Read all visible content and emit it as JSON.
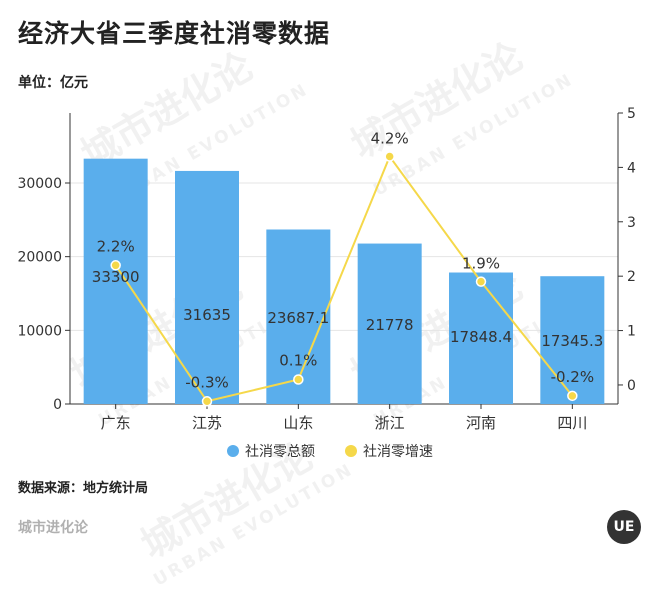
{
  "title": "经济大省三季度社消零数据",
  "unit": "单位：亿元",
  "source": "数据来源：地方统计局",
  "brand": "城市进化论",
  "logo_text": "UE",
  "watermark": {
    "cn": "城市进化论",
    "en": "URBAN EVOLUTION"
  },
  "colors": {
    "bar": "#5aaeec",
    "line": "#f5d84a",
    "axis": "#333333",
    "grid": "#e5e5e5"
  },
  "chart_data": {
    "type": "bar",
    "categories": [
      "广东",
      "江苏",
      "山东",
      "浙江",
      "河南",
      "四川"
    ],
    "series": [
      {
        "name": "社消零总额",
        "type": "bar",
        "axis": "left",
        "values": [
          33300,
          31635,
          23687.1,
          21778,
          17848.4,
          17345.3
        ],
        "labels": [
          "33300",
          "31635",
          "23687.1",
          "21778",
          "17848.4",
          "17345.3"
        ]
      },
      {
        "name": "社消零增速",
        "type": "line",
        "axis": "right",
        "values": [
          2.2,
          -0.3,
          0.1,
          4.2,
          1.9,
          -0.2
        ],
        "labels": [
          "2.2%",
          "-0.3%",
          "0.1%",
          "4.2%",
          "1.9%",
          "-0.2%"
        ]
      }
    ],
    "left_axis": {
      "ticks": [
        0,
        10000,
        20000,
        30000
      ]
    },
    "right_axis": {
      "ticks": [
        0,
        1,
        2,
        3,
        4,
        5
      ]
    },
    "grid": true,
    "legend": "bottom"
  }
}
